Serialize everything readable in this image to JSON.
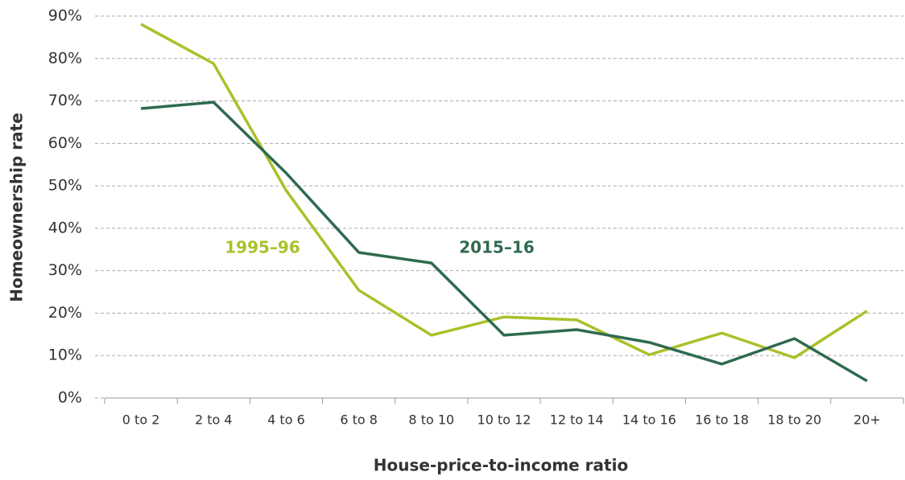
{
  "chart_data": {
    "type": "line",
    "x_label": "House-price-to-income ratio",
    "y_label": "Homeownership rate",
    "categories": [
      "0 to 2",
      "2 to 4",
      "4 to 6",
      "6 to 8",
      "8 to 10",
      "10 to 12",
      "12 to 14",
      "14 to 16",
      "16 to 18",
      "18 to 20",
      "20+"
    ],
    "series": [
      {
        "name": "1995–96",
        "color": "#a9c12a",
        "values": [
          88.1,
          78.8,
          48.9,
          25.4,
          14.8,
          19.1,
          18.4,
          10.2,
          15.3,
          9.5,
          20.5
        ]
      },
      {
        "name": "2015–16",
        "color": "#2f6a4f",
        "values": [
          68.2,
          69.7,
          53.0,
          34.3,
          31.8,
          14.8,
          16.1,
          13.1,
          8.0,
          14.0,
          4.0
        ]
      }
    ],
    "ylim": [
      0,
      90
    ],
    "yticks": [
      {
        "value": 0,
        "label": "0%"
      },
      {
        "value": 10,
        "label": "10%"
      },
      {
        "value": 20,
        "label": "20%"
      },
      {
        "value": 30,
        "label": "30%"
      },
      {
        "value": 40,
        "label": "40%"
      },
      {
        "value": 50,
        "label": "50%"
      },
      {
        "value": 60,
        "label": "60%"
      },
      {
        "value": 70,
        "label": "70%"
      },
      {
        "value": 80,
        "label": "80%"
      },
      {
        "value": 90,
        "label": "90%"
      }
    ],
    "grid": true
  }
}
